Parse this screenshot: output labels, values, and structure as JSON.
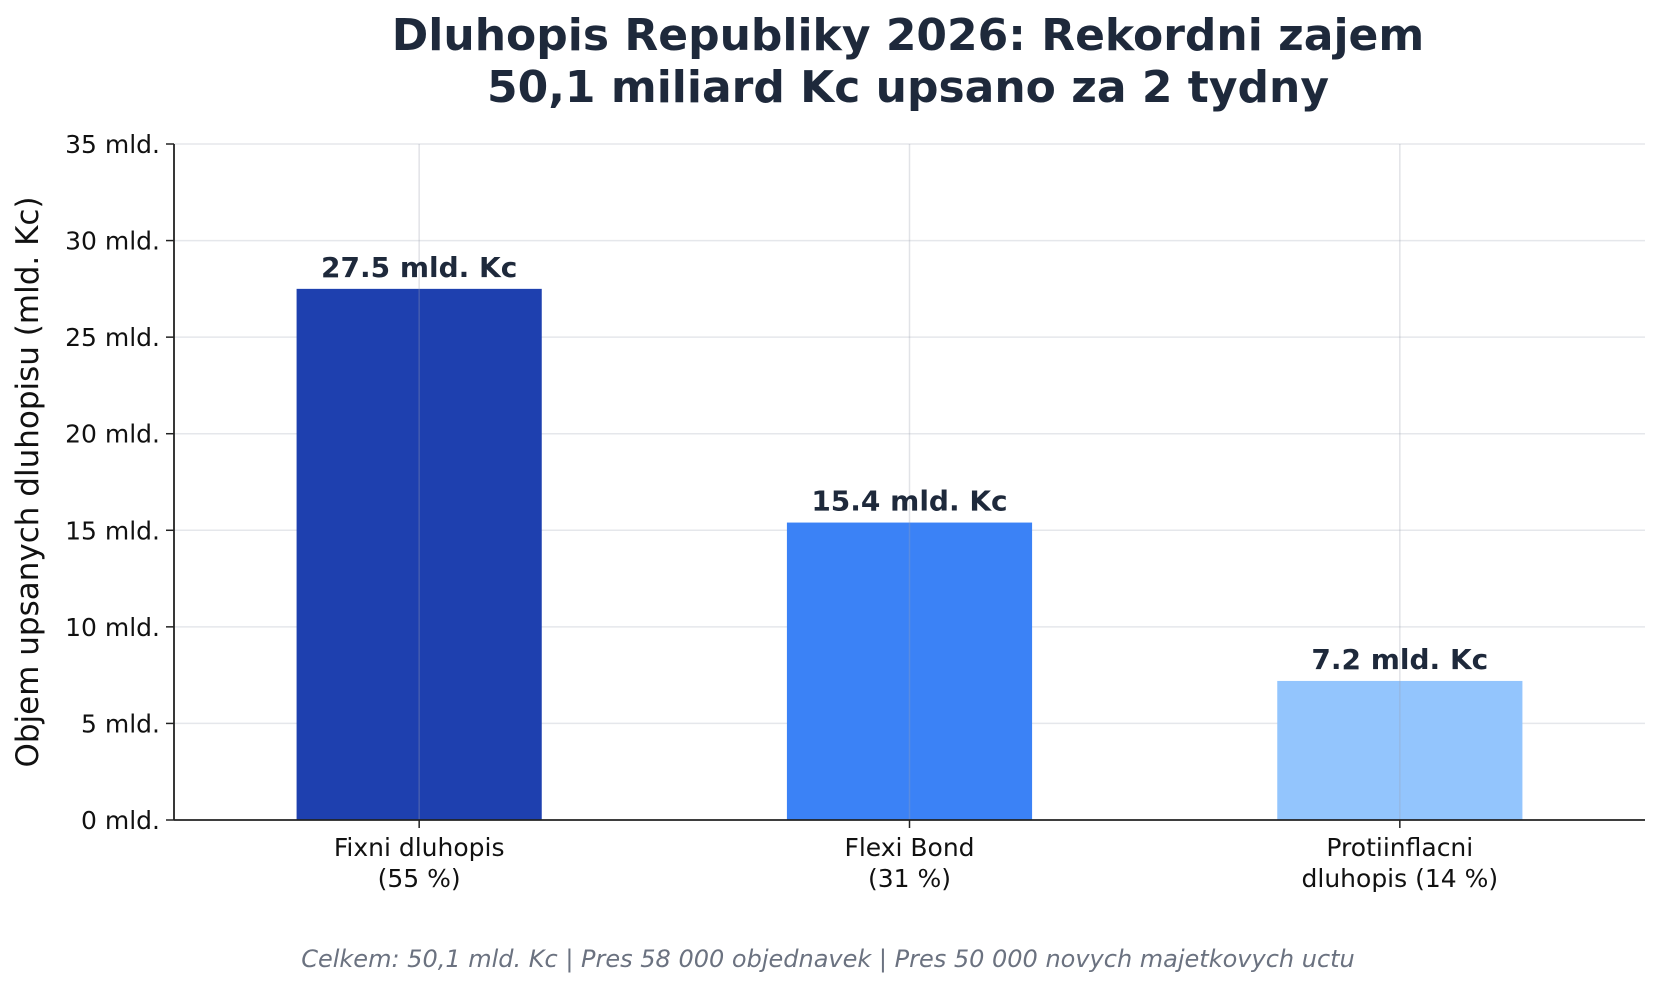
{
  "chart_data": {
    "type": "bar",
    "title_lines": [
      "Dluhopis Republiky 2026: Rekordni zajem",
      "50,1 miliard Kc upsano za 2 tydny"
    ],
    "ylabel": "Objem upsanych dluhopisu (mld. Kc)",
    "xlabel": "",
    "ylim": [
      0,
      35
    ],
    "yticks": [
      0,
      5,
      10,
      15,
      20,
      25,
      30,
      35
    ],
    "ytick_labels": [
      "0 mld.",
      "5 mld.",
      "10 mld.",
      "15 mld.",
      "20 mld.",
      "25 mld.",
      "30 mld.",
      "35 mld."
    ],
    "grid": true,
    "categories": [
      {
        "lines": [
          "Fixni dluhopis",
          "(55 %)"
        ]
      },
      {
        "lines": [
          "Flexi Bond",
          "(31 %)"
        ]
      },
      {
        "lines": [
          "Protiinflacni",
          "dluhopis (14 %)"
        ]
      }
    ],
    "values": [
      27.5,
      15.4,
      7.2
    ],
    "value_labels": [
      "27.5 mld. Kc",
      "15.4 mld. Kc",
      "7.2 mld. Kc"
    ],
    "colors": [
      "#1e40af",
      "#3b82f6",
      "#93c5fd"
    ],
    "footnote": "Celkem: 50,1 mld. Kc | Pres 58 000 objednavek | Pres 50 000 novych majetkovych uctu"
  }
}
